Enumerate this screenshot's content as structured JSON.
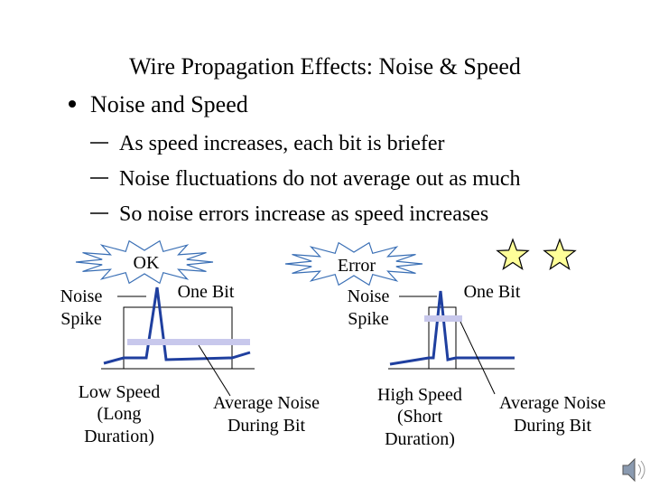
{
  "title": "Wire Propagation Effects: Noise & Speed",
  "bullet": "Noise and Speed",
  "sub_bullets": [
    "As speed increases, each bit is briefer",
    "Noise fluctuations do not average out as much",
    "So noise errors increase as speed increases"
  ],
  "left_diagram": {
    "callout": "OK",
    "spike_label": [
      "Noise",
      "Spike"
    ],
    "bit_label": "One Bit",
    "speed_label": [
      "Low Speed",
      "(Long",
      "Duration)"
    ],
    "average_label": [
      "Average Noise",
      "During Bit"
    ]
  },
  "right_diagram": {
    "callout": "Error",
    "spike_label": [
      "Noise",
      "Spike"
    ],
    "bit_label": "One Bit",
    "speed_label": [
      "High Speed",
      "(Short",
      "Duration)"
    ],
    "average_label": [
      "Average Noise",
      "During Bit"
    ]
  }
}
